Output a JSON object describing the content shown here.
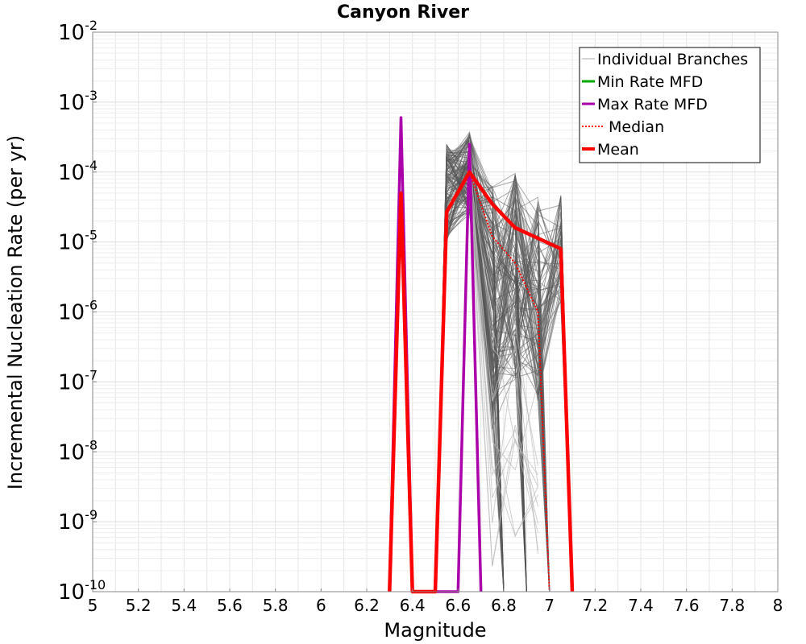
{
  "chart_data": {
    "type": "line",
    "title": "Canyon River",
    "xlabel": "Magnitude",
    "ylabel": "Incremental Nucleation Rate (per yr)",
    "x_scale": "linear",
    "y_scale": "log",
    "xlim": [
      5,
      8
    ],
    "ylim": [
      1e-10,
      0.01
    ],
    "x_ticks": [
      "5",
      "5.2",
      "5.4",
      "5.6",
      "5.8",
      "6",
      "6.2",
      "6.4",
      "6.6",
      "6.8",
      "7",
      "7.2",
      "7.4",
      "7.6",
      "7.8",
      "8"
    ],
    "y_ticks": [
      {
        "base": "10",
        "exp": "-10"
      },
      {
        "base": "10",
        "exp": "-9"
      },
      {
        "base": "10",
        "exp": "-8"
      },
      {
        "base": "10",
        "exp": "-7"
      },
      {
        "base": "10",
        "exp": "-6"
      },
      {
        "base": "10",
        "exp": "-5"
      },
      {
        "base": "10",
        "exp": "-4"
      },
      {
        "base": "10",
        "exp": "-3"
      },
      {
        "base": "10",
        "exp": "-2"
      }
    ],
    "grid": true,
    "legend_position": "top-right",
    "legend": [
      {
        "label": "Individual Branches",
        "color": "#aaaaaa",
        "style": "solid",
        "width": 1
      },
      {
        "label": "Min Rate MFD",
        "color": "#00aa00",
        "style": "solid",
        "width": 3
      },
      {
        "label": "Max Rate MFD",
        "color": "#aa00aa",
        "style": "solid",
        "width": 3
      },
      {
        "label": "Median",
        "color": "#ff0000",
        "style": "dotted",
        "width": 2
      },
      {
        "label": "Mean",
        "color": "#ff0000",
        "style": "solid",
        "width": 4
      }
    ],
    "branches_color": "#555555",
    "series": [
      {
        "name": "Max Rate MFD",
        "color": "#aa00aa",
        "width": 3.5,
        "style": "solid",
        "points": [
          [
            6.3,
            1e-10
          ],
          [
            6.35,
            0.0006
          ],
          [
            6.4,
            1e-10
          ],
          [
            6.6,
            1e-10
          ],
          [
            6.65,
            0.00025
          ],
          [
            6.7,
            1e-10
          ]
        ]
      },
      {
        "name": "Median",
        "color": "#ff0000",
        "width": 2,
        "style": "dotted",
        "points": [
          [
            6.5,
            1e-10
          ],
          [
            6.55,
            2.8e-05
          ],
          [
            6.65,
            0.0001
          ],
          [
            6.75,
            1.2e-05
          ],
          [
            6.85,
            5e-06
          ],
          [
            6.95,
            1e-06
          ],
          [
            7.0,
            1e-10
          ]
        ]
      },
      {
        "name": "Mean",
        "color": "#ff0000",
        "width": 4.5,
        "style": "solid",
        "points": [
          [
            6.3,
            1e-10
          ],
          [
            6.35,
            5e-05
          ],
          [
            6.4,
            1e-10
          ],
          [
            6.5,
            1e-10
          ],
          [
            6.55,
            2.7e-05
          ],
          [
            6.65,
            0.0001
          ],
          [
            6.75,
            3.5e-05
          ],
          [
            6.85,
            1.6e-05
          ],
          [
            7.05,
            8e-06
          ],
          [
            7.1,
            1e-10
          ]
        ]
      }
    ]
  }
}
